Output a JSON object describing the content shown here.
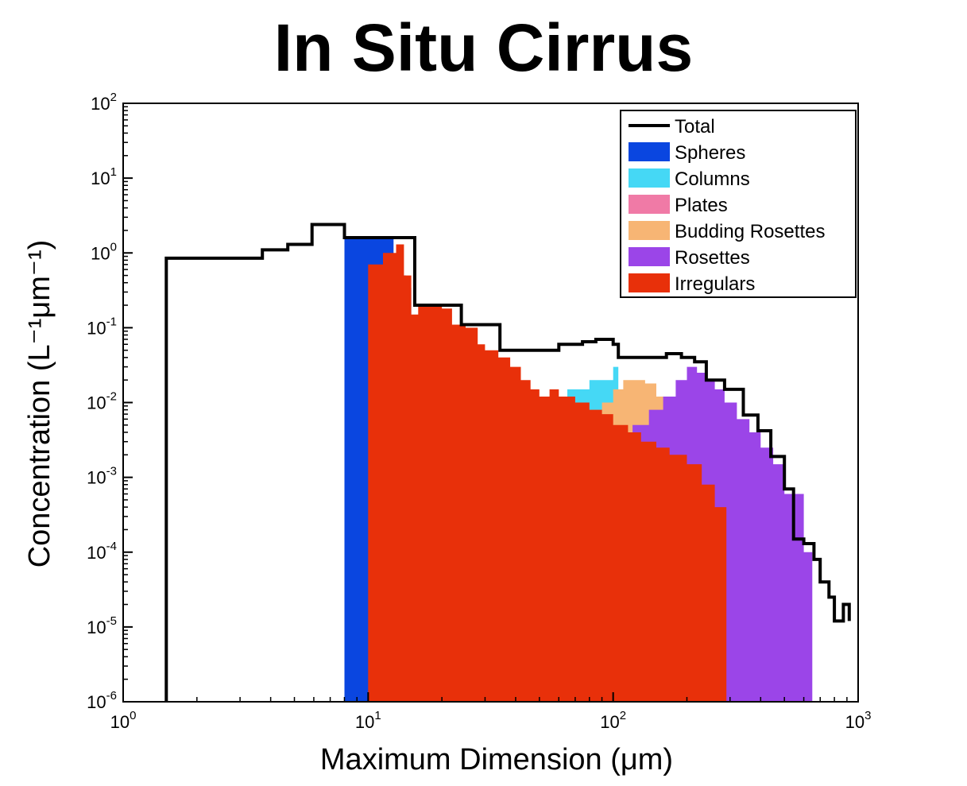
{
  "chart_data": {
    "type": "area",
    "title": "In Situ Cirrus",
    "xlabel": "Maximum Dimension (μm)",
    "ylabel": "Concentration (L⁻¹μm⁻¹)",
    "xscale": "log",
    "yscale": "log",
    "xlim": [
      1,
      1000
    ],
    "ylim": [
      1e-06,
      100
    ],
    "xticks": [
      {
        "base": "10",
        "exp": "0",
        "value": 1
      },
      {
        "base": "10",
        "exp": "1",
        "value": 10
      },
      {
        "base": "10",
        "exp": "2",
        "value": 100
      },
      {
        "base": "10",
        "exp": "3",
        "value": 1000
      }
    ],
    "yticks": [
      {
        "base": "10",
        "exp": "-6",
        "value": 1e-06
      },
      {
        "base": "10",
        "exp": "-5",
        "value": 1e-05
      },
      {
        "base": "10",
        "exp": "-4",
        "value": 0.0001
      },
      {
        "base": "10",
        "exp": "-3",
        "value": 0.001
      },
      {
        "base": "10",
        "exp": "-2",
        "value": 0.01
      },
      {
        "base": "10",
        "exp": "-1",
        "value": 0.1
      },
      {
        "base": "10",
        "exp": "0",
        "value": 1
      },
      {
        "base": "10",
        "exp": "1",
        "value": 10
      },
      {
        "base": "10",
        "exp": "2",
        "value": 100
      }
    ],
    "legend_position": "top-right",
    "series": [
      {
        "name": "Total",
        "color": "#000000",
        "style": "line",
        "x": [
          1.5,
          1.5,
          3.0,
          3.7,
          4.7,
          5.9,
          8.0,
          10.5,
          13.0,
          15.5,
          15.5,
          16.5,
          20.0,
          24.0,
          26.0,
          34.5,
          40.0,
          60.0,
          75.0,
          85.0,
          100.0,
          105.0,
          130.0,
          165.0,
          190.0,
          215.0,
          240.0,
          285.0,
          340.0,
          390.0,
          440.0,
          500.0,
          545.0,
          600.0,
          660.0,
          700.0,
          760.0,
          800.0,
          870.0,
          920.0
        ],
        "y": [
          1e-06,
          0.85,
          0.85,
          1.1,
          1.3,
          2.4,
          1.6,
          1.6,
          1.6,
          1.6,
          0.2,
          0.2,
          0.2,
          0.11,
          0.11,
          0.05,
          0.05,
          0.06,
          0.065,
          0.07,
          0.06,
          0.04,
          0.04,
          0.045,
          0.04,
          0.035,
          0.02,
          0.015,
          0.0068,
          0.0042,
          0.0019,
          0.0007,
          0.00015,
          0.00013,
          8e-05,
          4e-05,
          2.5e-05,
          1.2e-05,
          2e-05,
          1.2e-05
        ]
      },
      {
        "name": "Spheres",
        "color": "#0a46e0",
        "style": "fill",
        "x": [
          8.0,
          8.0,
          12.0,
          12.7,
          12.9,
          13.3,
          14.3,
          15.0,
          16.0,
          17.5,
          18.5,
          20.0,
          22.0,
          25.0,
          27.0,
          29.0,
          30.5,
          32.0,
          34.5,
          35.0,
          36.5,
          37.0,
          39.0,
          40.0
        ],
        "y": [
          1e-06,
          1.6,
          1.6,
          0.95,
          0.8,
          0.5,
          0.34,
          0.12,
          0.1,
          0.05,
          0.05,
          0.035,
          0.03,
          0.012,
          0.006,
          0.004,
          0.003,
          0.0017,
          0.0011,
          0.0011,
          0.0007,
          0.0007,
          0.0004,
          1e-06
        ]
      },
      {
        "name": "Columns",
        "color": "#45d8f5",
        "style": "fill",
        "x": [
          15.0,
          15.0,
          24.0,
          24.0,
          25.5,
          27.5,
          30.0,
          33.0,
          35.0,
          37.5,
          40.0,
          43.0,
          47.0,
          50.0,
          55.0,
          65.0,
          80.0,
          100.0,
          105.0,
          110.0,
          130.0,
          140.0,
          150.0,
          160.0,
          170.0,
          180.0,
          195.0
        ],
        "y": [
          1e-06,
          0.0003,
          0.0003,
          0.0045,
          0.005,
          0.004,
          0.0045,
          0.004,
          0.003,
          0.003,
          0.004,
          0.005,
          0.006,
          0.007,
          0.01,
          0.015,
          0.02,
          0.03,
          0.007,
          0.008,
          0.009,
          0.006,
          0.005,
          0.003,
          0.002,
          0.0006,
          1e-06
        ]
      },
      {
        "name": "Plates",
        "color": "#f07aa6",
        "style": "fill",
        "x": [
          40.0,
          40.0,
          44.0,
          44.0,
          60.0,
          60.0,
          70.0,
          70.0,
          90.0,
          90.0
        ],
        "y": [
          1e-06,
          0.002,
          0.002,
          1e-06,
          1e-06,
          0.0015,
          0.0015,
          1e-06,
          1e-06,
          0.0012
        ]
      },
      {
        "name": "Budding Rosettes",
        "color": "#f7b574",
        "style": "fill",
        "x": [
          47.0,
          47.0,
          55.0,
          62.0,
          70.0,
          80.0,
          90.0,
          100.0,
          110.0,
          120.0,
          135.0,
          150.0,
          165.0,
          180.0,
          195.0,
          210.0,
          240.0,
          260.0,
          285.0
        ],
        "y": [
          1e-06,
          0.004,
          0.005,
          0.006,
          0.007,
          0.008,
          0.01,
          0.015,
          0.02,
          0.02,
          0.018,
          0.012,
          0.009,
          0.006,
          0.004,
          0.002,
          0.0015,
          0.0009,
          1e-06
        ]
      },
      {
        "name": "Rosettes",
        "color": "#9b45e8",
        "style": "fill",
        "x": [
          100.0,
          100.0,
          120.0,
          140.0,
          160.0,
          180.0,
          200.0,
          220.0,
          240.0,
          260.0,
          285.0,
          320.0,
          360.0,
          400.0,
          450.0,
          500.0,
          600.0,
          650.0
        ],
        "y": [
          1e-06,
          0.003,
          0.005,
          0.008,
          0.012,
          0.02,
          0.03,
          0.025,
          0.02,
          0.015,
          0.01,
          0.006,
          0.004,
          0.0025,
          0.0015,
          0.0006,
          0.0001,
          1e-06
        ]
      },
      {
        "name": "Irregulars",
        "color": "#e8300a",
        "style": "fill",
        "x": [
          10.0,
          10.0,
          11.5,
          11.5,
          13.0,
          14.0,
          15.0,
          16.0,
          18.0,
          20.0,
          22.0,
          25.0,
          28.0,
          30.0,
          34.0,
          38.0,
          42.0,
          46.0,
          50.0,
          55.0,
          60.0,
          70.0,
          80.0,
          90.0,
          100.0,
          115.0,
          130.0,
          150.0,
          170.0,
          200.0,
          230.0,
          260.0,
          290.0
        ],
        "y": [
          1e-06,
          0.7,
          0.9,
          1.0,
          1.3,
          0.5,
          0.15,
          0.2,
          0.2,
          0.18,
          0.11,
          0.1,
          0.06,
          0.05,
          0.04,
          0.03,
          0.02,
          0.015,
          0.012,
          0.015,
          0.012,
          0.01,
          0.008,
          0.007,
          0.005,
          0.004,
          0.003,
          0.0025,
          0.002,
          0.0015,
          0.0008,
          0.0004,
          1e-06
        ]
      }
    ]
  }
}
